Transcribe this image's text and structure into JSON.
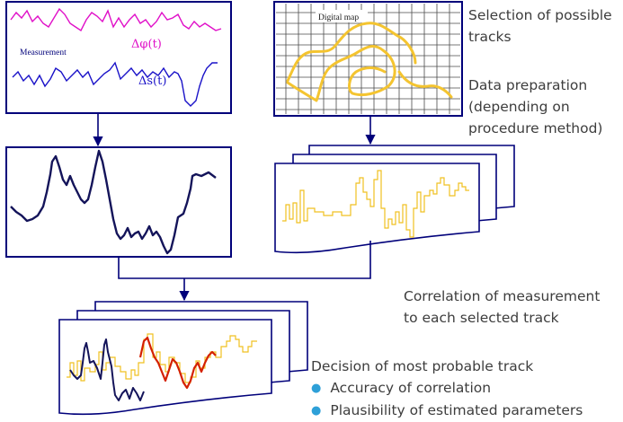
{
  "measurement_panel": {
    "title": "Measurement",
    "signal_phi": "Δφ(t)",
    "signal_s": "Δs(t)"
  },
  "map_panel": {
    "title": "Digital map"
  },
  "steps": {
    "selection": [
      "Selection of possible",
      "tracks"
    ],
    "preparation": [
      "Data preparation",
      "(depending on",
      "procedure method)"
    ],
    "correlation": [
      "Correlation of measurement",
      "to each selected track"
    ],
    "decision": {
      "title": "Decision of most probable track",
      "bullets": [
        "Accuracy of correlation",
        "Plausibility of estimated parameters"
      ]
    }
  },
  "colors": {
    "frame": "#00007a",
    "phi_signal": "#e010c8",
    "s_signal": "#1a12c8",
    "map_track": "#f4c430",
    "map_grid": "#4a4a4a",
    "measured_curve": "#14145a",
    "track_curve": "#f0c020",
    "matched_segment": "#d42000",
    "text": "#3d3d3d",
    "bullet": "#2ea0d8"
  }
}
